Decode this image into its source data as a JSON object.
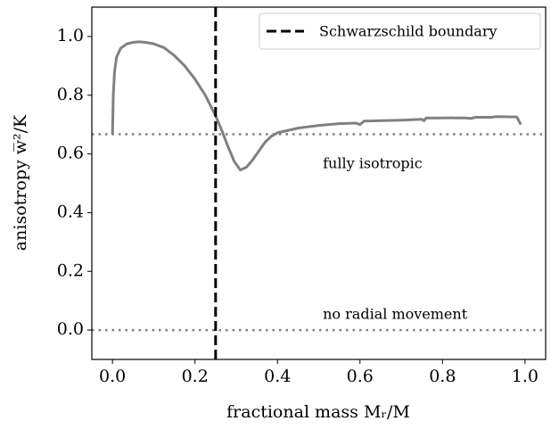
{
  "chart_data": {
    "type": "line",
    "xlabel": "fractional mass Mᵣ/M",
    "ylabel": "anisotropy w̅²/K",
    "xlim": [
      -0.05,
      1.05
    ],
    "ylim": [
      -0.1,
      1.1
    ],
    "xticks": [
      {
        "value": 0,
        "label": "0.0"
      },
      0.2,
      0.4,
      0.6,
      0.8,
      {
        "value": 1,
        "label": "1.0"
      }
    ],
    "yticks": [
      {
        "value": 0,
        "label": "0.0"
      },
      0.2,
      0.4,
      0.6,
      0.8,
      {
        "value": 1,
        "label": "1.0"
      }
    ],
    "x": [
      0,
      0.002,
      0.005,
      0.01,
      0.02,
      0.035,
      0.05,
      0.065,
      0.08,
      0.1,
      0.125,
      0.15,
      0.175,
      0.2,
      0.225,
      0.25,
      0.265,
      0.28,
      0.295,
      0.31,
      0.325,
      0.34,
      0.355,
      0.37,
      0.385,
      0.4,
      0.45,
      0.5,
      0.55,
      0.59,
      0.6,
      0.61,
      0.7,
      0.75,
      0.755,
      0.76,
      0.85,
      0.87,
      0.88,
      0.92,
      0.93,
      0.98,
      0.99
    ],
    "series": [
      {
        "name": "anisotropy",
        "color": "#808080",
        "values": [
          0.667,
          0.8,
          0.88,
          0.93,
          0.96,
          0.975,
          0.98,
          0.982,
          0.98,
          0.975,
          0.962,
          0.935,
          0.9,
          0.855,
          0.8,
          0.73,
          0.68,
          0.625,
          0.575,
          0.545,
          0.555,
          0.58,
          0.61,
          0.64,
          0.66,
          0.672,
          0.688,
          0.697,
          0.703,
          0.705,
          0.7,
          0.712,
          0.715,
          0.718,
          0.713,
          0.722,
          0.723,
          0.721,
          0.725,
          0.725,
          0.727,
          0.726,
          0.7
        ]
      }
    ],
    "hlines": [
      0.667,
      0
    ],
    "vline": {
      "x": 0.25,
      "name": "Schwarzschild boundary",
      "color": "#000000"
    },
    "annotations": [
      {
        "text": "fully isotropic",
        "x": 0.51,
        "y": 0.565
      },
      {
        "text": "no radial movement",
        "x": 0.51,
        "y": 0.052
      }
    ],
    "legend": "upper right"
  }
}
